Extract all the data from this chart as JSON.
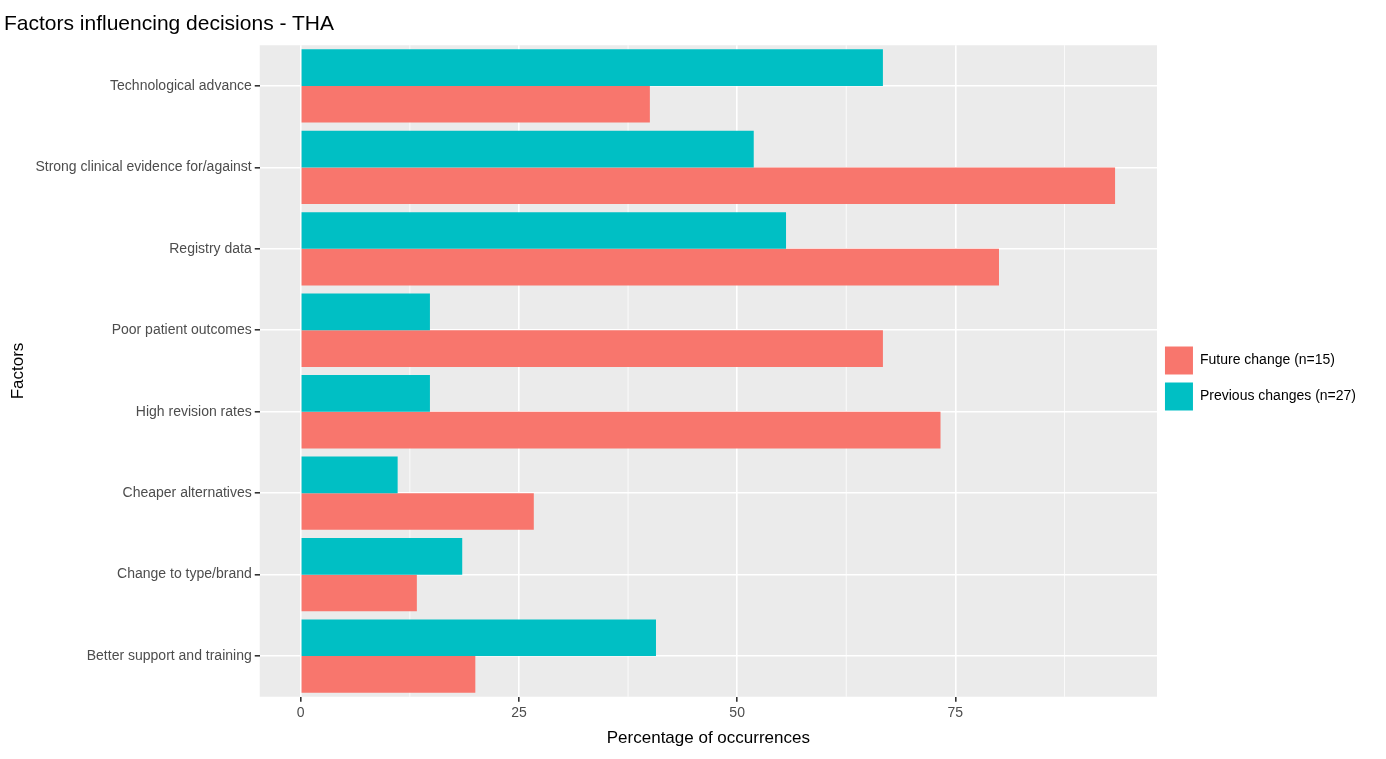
{
  "chart_data": {
    "type": "bar",
    "orientation": "horizontal",
    "title": "Factors influencing decisions - THA",
    "xlabel": "Percentage of occurrences",
    "ylabel": "Factors",
    "categories": [
      "Technological advance",
      "Strong clinical evidence for/against",
      "Registry data",
      "Poor patient outcomes",
      "High revision rates",
      "Cheaper alternatives",
      "Change to type/brand",
      "Better support and training"
    ],
    "series": [
      {
        "name": "Future change (n=15)",
        "color": "#f8766d",
        "values": [
          40.0,
          93.3,
          80.0,
          66.7,
          73.3,
          26.7,
          13.3,
          20.0
        ]
      },
      {
        "name": "Previous changes (n=27)",
        "color": "#00bfc4",
        "values": [
          66.7,
          51.9,
          55.6,
          14.8,
          14.8,
          11.1,
          18.5,
          40.7
        ]
      }
    ],
    "xlim": [
      -4.7,
      98.1
    ],
    "xticks": [
      0,
      25,
      50,
      75
    ],
    "grid": true,
    "legend": "right"
  }
}
